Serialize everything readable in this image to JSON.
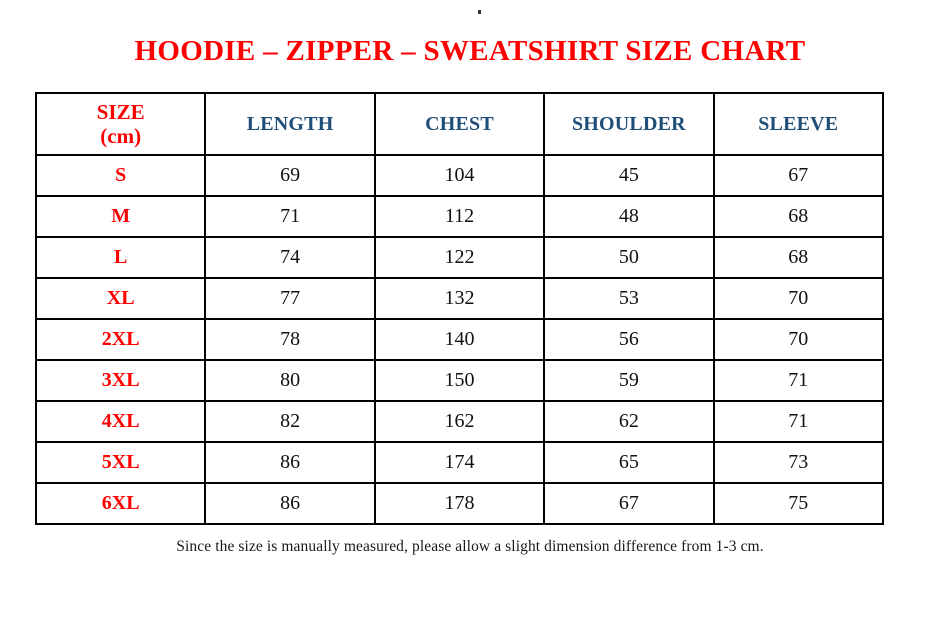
{
  "page": {
    "stray_dot": ".",
    "title": "HOODIE – ZIPPER – SWEATSHIRT SIZE CHART",
    "footer_note": "Since the size is manually measured, please allow a slight dimension difference from 1-3 cm."
  },
  "colors": {
    "title_red": "#fe0000",
    "header_blue": "#1f4e79",
    "size_red": "#fe0000",
    "value_black": "#111111",
    "border_black": "#000000"
  },
  "table": {
    "header": {
      "size_label": "SIZE",
      "size_unit": "(cm)",
      "columns": [
        "LENGTH",
        "CHEST",
        "SHOULDER",
        "SLEEVE"
      ]
    },
    "rows": [
      {
        "size": "S",
        "values": [
          "69",
          "104",
          "45",
          "67"
        ]
      },
      {
        "size": "M",
        "values": [
          "71",
          "112",
          "48",
          "68"
        ]
      },
      {
        "size": "L",
        "values": [
          "74",
          "122",
          "50",
          "68"
        ]
      },
      {
        "size": "XL",
        "values": [
          "77",
          "132",
          "53",
          "70"
        ]
      },
      {
        "size": "2XL",
        "values": [
          "78",
          "140",
          "56",
          "70"
        ]
      },
      {
        "size": "3XL",
        "values": [
          "80",
          "150",
          "59",
          "71"
        ]
      },
      {
        "size": "4XL",
        "values": [
          "82",
          "162",
          "62",
          "71"
        ]
      },
      {
        "size": "5XL",
        "values": [
          "86",
          "174",
          "65",
          "73"
        ]
      },
      {
        "size": "6XL",
        "values": [
          "86",
          "178",
          "67",
          "75"
        ]
      }
    ]
  },
  "chart_data": {
    "type": "table",
    "title": "HOODIE – ZIPPER – SWEATSHIRT SIZE CHART",
    "columns": [
      "SIZE (cm)",
      "LENGTH",
      "CHEST",
      "SHOULDER",
      "SLEEVE"
    ],
    "rows": [
      [
        "S",
        69,
        104,
        45,
        67
      ],
      [
        "M",
        71,
        112,
        48,
        68
      ],
      [
        "L",
        74,
        122,
        50,
        68
      ],
      [
        "XL",
        77,
        132,
        53,
        70
      ],
      [
        "2XL",
        78,
        140,
        56,
        70
      ],
      [
        "3XL",
        80,
        150,
        59,
        71
      ],
      [
        "4XL",
        82,
        162,
        62,
        71
      ],
      [
        "5XL",
        86,
        174,
        65,
        73
      ],
      [
        "6XL",
        86,
        178,
        67,
        75
      ]
    ],
    "note": "Since the size is manually measured, please allow a slight dimension difference from 1-3 cm."
  }
}
